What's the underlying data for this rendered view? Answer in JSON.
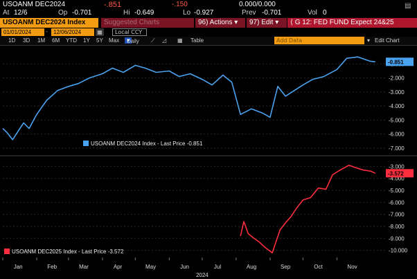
{
  "quote": {
    "ticker": "USOANM DEC2024",
    "last": "-.851",
    "change": "-.150",
    "bidask": "0.000/0.000",
    "date_label": "At",
    "date": "12/6",
    "op_label": "Op",
    "op": "-0.701",
    "hi_label": "Hi",
    "hi": "-0.649",
    "lo_label": "Lo",
    "lo": "-0.927",
    "prev_label": "Prev",
    "prev": "-0.701",
    "vol_label": "Vol",
    "vol": "0"
  },
  "toolbar": {
    "security": "USOANM DEC2024 Index",
    "suggested": "Suggested Charts",
    "actions": "96) Actions",
    "edit": "97) Edit",
    "title": "G 12: FED FUND Expect 24&25",
    "start_date": "01/01/2024",
    "end_date": "12/06/2024",
    "currency": "Local CCY",
    "ranges": [
      "1D",
      "3D",
      "1M",
      "6M",
      "YTD",
      "1Y",
      "5Y",
      "Max"
    ],
    "frequency": "Daily",
    "table": "Table",
    "add_data": "Add Data",
    "edit_chart": "Edit Chart"
  },
  "colors": {
    "series1": "#4aa3f0",
    "series2": "#ff2e3e",
    "accent": "#f39c12",
    "toolbar_red": "#b0172e"
  },
  "chart_data": [
    {
      "type": "line",
      "legend": "USOANM DEC2024 Index - Last Price -0.851",
      "last_label": "-0.851",
      "ylim": [
        -7.2,
        0.2
      ],
      "yticks": [
        "-1.000",
        "-2.000",
        "-3.000",
        "-4.000",
        "-5.000",
        "-6.000",
        "-7.000"
      ],
      "ytick_values": [
        -1,
        -2,
        -3,
        -4,
        -5,
        -6,
        -7
      ],
      "series": [
        {
          "x": [
            "2024-01-01",
            "2024-01-05",
            "2024-01-10",
            "2024-01-15",
            "2024-01-20",
            "2024-01-25",
            "2024-02-01",
            "2024-02-10",
            "2024-02-20",
            "2024-03-01",
            "2024-03-10",
            "2024-03-20",
            "2024-04-01",
            "2024-04-10",
            "2024-04-20",
            "2024-05-01",
            "2024-05-10",
            "2024-05-20",
            "2024-06-01",
            "2024-06-10",
            "2024-06-20",
            "2024-07-01",
            "2024-07-10",
            "2024-07-20",
            "2024-07-28",
            "2024-08-05",
            "2024-08-15",
            "2024-08-25",
            "2024-09-01",
            "2024-09-08",
            "2024-09-15",
            "2024-09-25",
            "2024-10-01",
            "2024-10-10",
            "2024-10-20",
            "2024-11-01",
            "2024-11-10",
            "2024-11-20",
            "2024-12-01",
            "2024-12-06"
          ],
          "values": [
            -5.6,
            -5.9,
            -6.4,
            -5.8,
            -5.2,
            -5.6,
            -4.6,
            -3.6,
            -2.9,
            -2.6,
            -2.4,
            -2.0,
            -1.7,
            -1.3,
            -1.6,
            -1.1,
            -1.3,
            -1.6,
            -1.5,
            -1.9,
            -1.7,
            -2.1,
            -2.5,
            -1.8,
            -2.3,
            -4.6,
            -4.2,
            -4.5,
            -4.8,
            -2.6,
            -3.3,
            -2.8,
            -2.5,
            -2.1,
            -1.9,
            -1.4,
            -0.6,
            -0.5,
            -0.8,
            -0.85
          ]
        }
      ]
    },
    {
      "type": "line",
      "legend": "USOANM DEC2025 Index - Last Price -3.572",
      "last_label": "-3.572",
      "ylim": [
        -10.6,
        -2.4
      ],
      "yticks": [
        "-3.000",
        "-4.000",
        "-5.000",
        "-6.000",
        "-7.000",
        "-8.000",
        "-9.000",
        "-10.000"
      ],
      "ytick_values": [
        -3,
        -4,
        -5,
        -6,
        -7,
        -8,
        -9,
        -10
      ],
      "series": [
        {
          "x": [
            "2024-08-05",
            "2024-08-08",
            "2024-08-12",
            "2024-08-16",
            "2024-08-22",
            "2024-08-28",
            "2024-09-03",
            "2024-09-10",
            "2024-09-16",
            "2024-09-20",
            "2024-09-25",
            "2024-10-01",
            "2024-10-08",
            "2024-10-15",
            "2024-10-22",
            "2024-10-28",
            "2024-11-04",
            "2024-11-12",
            "2024-11-18",
            "2024-11-25",
            "2024-12-02",
            "2024-12-06"
          ],
          "values": [
            -8.8,
            -7.6,
            -8.6,
            -8.9,
            -9.3,
            -9.8,
            -10.2,
            -8.3,
            -7.6,
            -7.2,
            -6.5,
            -5.8,
            -5.6,
            -4.8,
            -4.9,
            -3.7,
            -3.3,
            -2.9,
            -3.1,
            -3.3,
            -3.4,
            -3.57
          ]
        }
      ]
    }
  ],
  "xaxis": {
    "months": [
      "Jan",
      "Feb",
      "Mar",
      "Apr",
      "May",
      "Jun",
      "Jul",
      "Aug",
      "Sep",
      "Oct",
      "Nov"
    ],
    "year": "2024"
  }
}
